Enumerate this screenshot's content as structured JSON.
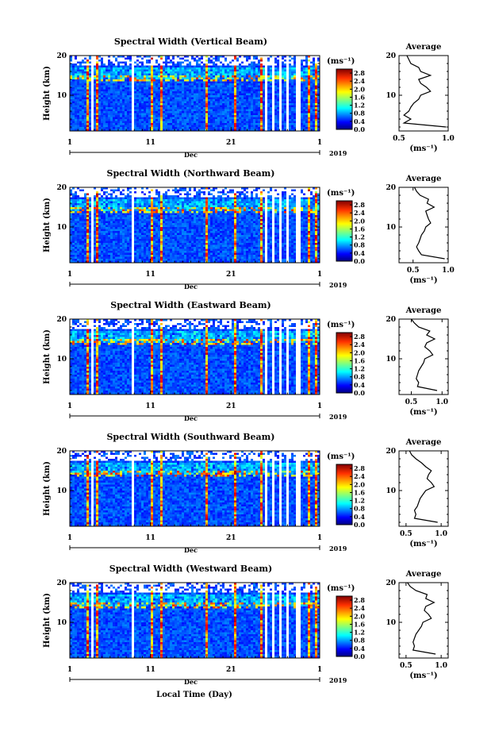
{
  "xlabel": "Local Time (Day)",
  "year_label": "2019",
  "month_label": "Dec",
  "x_ticks": [
    "1",
    "11",
    "21",
    "1"
  ],
  "y_ticks": [
    "20",
    "10"
  ],
  "ylabel": "Height (km)",
  "colorbar": {
    "unit": "(ms⁻¹)",
    "ticks": [
      "0.0",
      "0.4",
      "0.8",
      "1.2",
      "1.6",
      "2.0",
      "2.4",
      "2.8"
    ],
    "range": [
      0.0,
      3.0
    ]
  },
  "profile": {
    "title": "Average",
    "xlabel": "(ms⁻¹)",
    "y_ticks": [
      "20",
      "10"
    ]
  },
  "chart_data": [
    {
      "type": "heatmap",
      "title": "Spectral Width (Vertical Beam)",
      "x": "Local Time (Day), 1 Dec – 1 Jan, 2019",
      "y_range_km": [
        1,
        20
      ],
      "z_range": [
        0.0,
        3.0
      ],
      "profile": {
        "type": "line",
        "title": "Average",
        "xlim": [
          0.5,
          1.0
        ],
        "x_ticks": [
          "0.5",
          "1.0"
        ],
        "height_km": [
          2,
          3,
          4,
          5,
          6,
          7,
          8,
          9,
          10,
          11,
          12,
          13,
          14,
          15,
          16,
          17,
          18,
          19,
          20
        ],
        "values": [
          0.98,
          0.55,
          0.62,
          0.55,
          0.6,
          0.62,
          0.65,
          0.7,
          0.72,
          0.82,
          0.78,
          0.72,
          0.7,
          0.82,
          0.72,
          0.7,
          0.62,
          0.6,
          0.58
        ]
      }
    },
    {
      "type": "heatmap",
      "title": "Spectral Width (Northward Beam)",
      "x": "Local Time (Day), 1 Dec – 1 Jan, 2019",
      "y_range_km": [
        1,
        20
      ],
      "z_range": [
        0.0,
        3.0
      ],
      "profile": {
        "type": "line",
        "title": "Average",
        "xlim": [
          0.3,
          1.0
        ],
        "x_ticks": [
          "0.5",
          "1.0"
        ],
        "height_km": [
          2,
          3,
          4,
          5,
          6,
          7,
          8,
          9,
          10,
          11,
          12,
          13,
          14,
          15,
          16,
          17,
          18,
          19,
          20
        ],
        "values": [
          0.95,
          0.62,
          0.58,
          0.55,
          0.58,
          0.6,
          0.62,
          0.66,
          0.68,
          0.75,
          0.72,
          0.7,
          0.68,
          0.8,
          0.7,
          0.72,
          0.6,
          0.55,
          0.52
        ]
      }
    },
    {
      "type": "heatmap",
      "title": "Spectral Width (Eastward Beam)",
      "x": "Local Time (Day), 1 Dec – 1 Jan, 2019",
      "y_range_km": [
        1,
        20
      ],
      "z_range": [
        0.0,
        3.0
      ],
      "profile": {
        "type": "line",
        "title": "Average",
        "xlim": [
          0.3,
          1.1
        ],
        "x_ticks": [
          "0.5",
          "1.0"
        ],
        "height_km": [
          2,
          3,
          4,
          5,
          6,
          7,
          8,
          9,
          10,
          11,
          12,
          13,
          14,
          15,
          16,
          17,
          18,
          19,
          20
        ],
        "values": [
          0.92,
          0.6,
          0.62,
          0.58,
          0.6,
          0.62,
          0.66,
          0.7,
          0.72,
          0.85,
          0.8,
          0.72,
          0.75,
          0.88,
          0.75,
          0.8,
          0.62,
          0.55,
          0.5
        ]
      }
    },
    {
      "type": "heatmap",
      "title": "Spectral Width (Southward Beam)",
      "x": "Local Time (Day), 1 Dec – 1 Jan, 2019",
      "y_range_km": [
        1,
        20
      ],
      "z_range": [
        0.0,
        3.0
      ],
      "profile": {
        "type": "line",
        "title": "Average",
        "xlim": [
          0.4,
          1.1
        ],
        "x_ticks": [
          "0.5",
          "1.0"
        ],
        "height_km": [
          2,
          3,
          4,
          5,
          6,
          7,
          8,
          9,
          10,
          11,
          12,
          13,
          14,
          15,
          16,
          17,
          18,
          19,
          20
        ],
        "values": [
          0.95,
          0.62,
          0.64,
          0.62,
          0.66,
          0.68,
          0.7,
          0.74,
          0.78,
          0.9,
          0.86,
          0.8,
          0.82,
          0.86,
          0.78,
          0.72,
          0.64,
          0.58,
          0.55
        ]
      }
    },
    {
      "type": "heatmap",
      "title": "Spectral Width (Westward Beam)",
      "x": "Local Time (Day), 1 Dec – 1 Jan, 2019",
      "y_range_km": [
        1,
        20
      ],
      "z_range": [
        0.0,
        3.0
      ],
      "profile": {
        "type": "line",
        "title": "Average",
        "xlim": [
          0.4,
          1.1
        ],
        "x_ticks": [
          "0.5",
          "1.0"
        ],
        "height_km": [
          2,
          3,
          4,
          5,
          6,
          7,
          8,
          9,
          10,
          11,
          12,
          13,
          14,
          15,
          16,
          17,
          18,
          19,
          20
        ],
        "values": [
          0.92,
          0.6,
          0.62,
          0.6,
          0.62,
          0.64,
          0.68,
          0.72,
          0.74,
          0.86,
          0.82,
          0.76,
          0.78,
          0.9,
          0.78,
          0.8,
          0.64,
          0.56,
          0.52
        ]
      }
    }
  ]
}
